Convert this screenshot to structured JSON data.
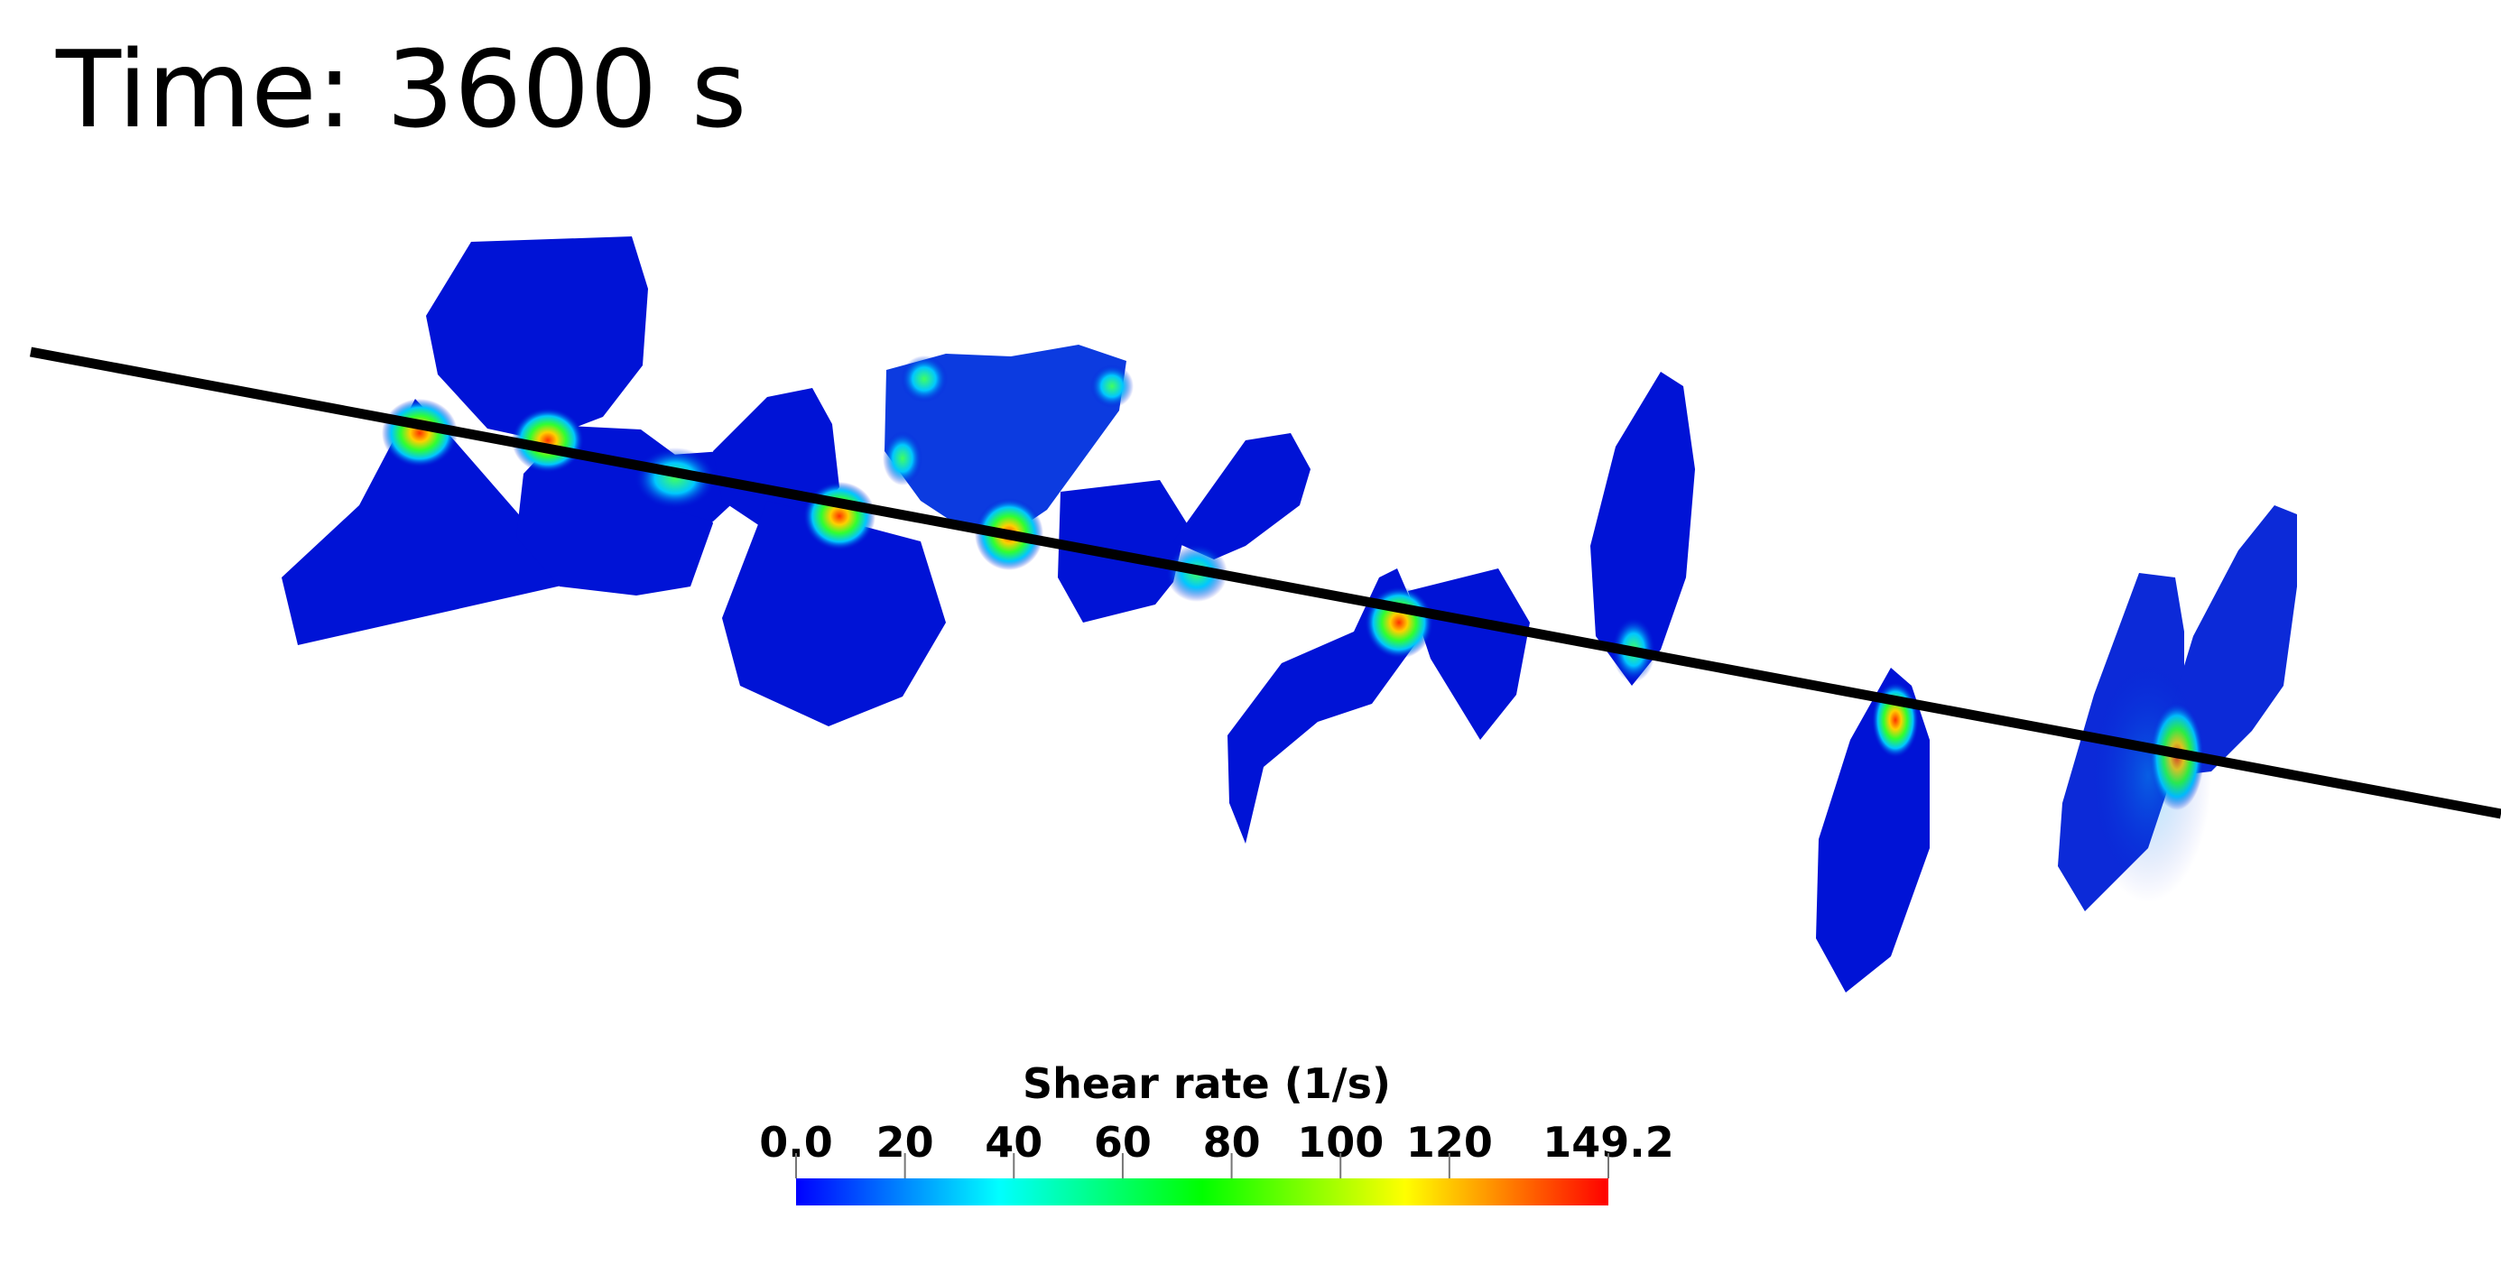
{
  "time_label": "Time: 3600 s",
  "colorbar": {
    "title": "Shear rate (1/s)",
    "min": 0.0,
    "max": 149.2,
    "tick_labels": [
      "0.0",
      "20",
      "40",
      "60",
      "80",
      "100",
      "120",
      "149.2"
    ],
    "tick_values": [
      0,
      20,
      40,
      60,
      80,
      100,
      120,
      149.2
    ],
    "colormap": [
      "#0000ff",
      "#00ffff",
      "#00ff00",
      "#ffff00",
      "#ff0000"
    ]
  },
  "colors": {
    "shaft": "#000000",
    "impeller_low": "#0013d6",
    "background": "#ffffff",
    "text": "#000000"
  }
}
